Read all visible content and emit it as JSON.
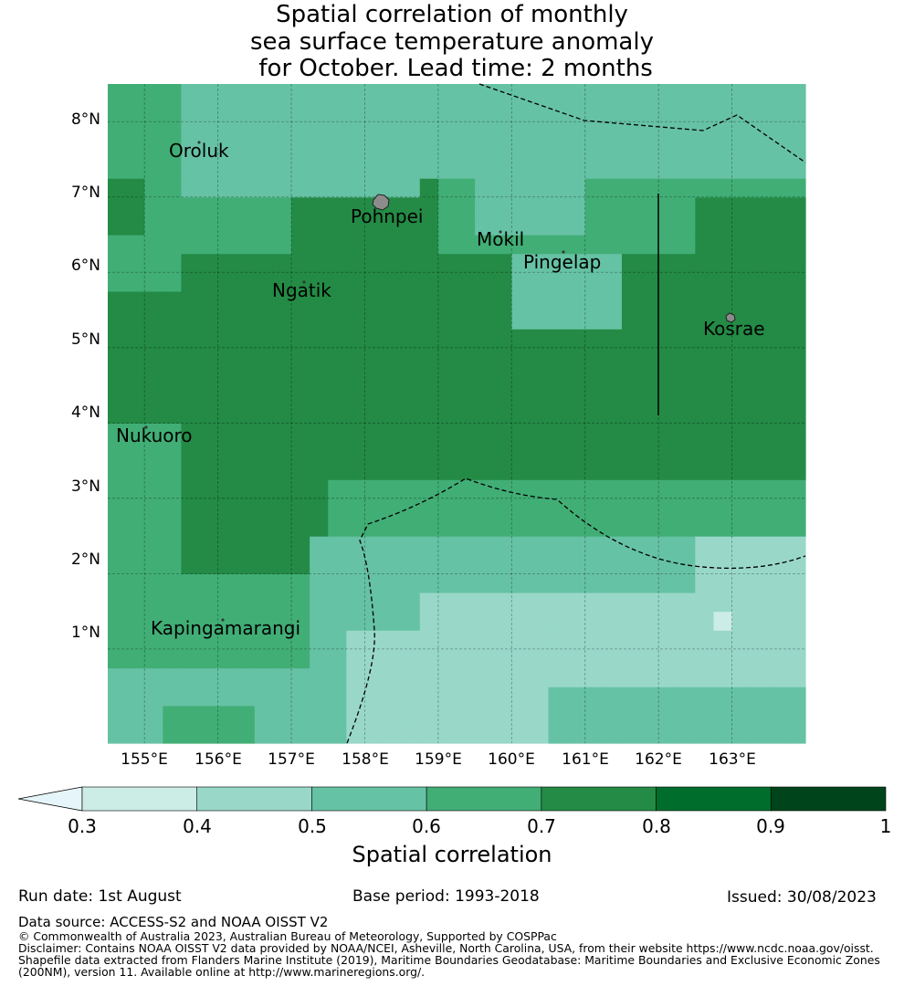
{
  "title_lines": [
    "Spatial correlation of monthly",
    "sea surface temperature anomaly",
    " for October. Lead time: 2 months"
  ],
  "axes": {
    "lat_ticks": [
      "8°N",
      "7°N",
      "6°N",
      "5°N",
      "4°N",
      "3°N",
      "2°N",
      "1°N"
    ],
    "lon_ticks": [
      "155°E",
      "156°E",
      "157°E",
      "158°E",
      "159°E",
      "160°E",
      "161°E",
      "162°E",
      "163°E"
    ],
    "lon_range": [
      154.5,
      164.0
    ],
    "lat_range": [
      -0.25,
      8.5
    ],
    "grid": true
  },
  "places": [
    {
      "name": "Oroluk"
    },
    {
      "name": "Pohnpei"
    },
    {
      "name": "Mokil"
    },
    {
      "name": "Pingelap"
    },
    {
      "name": "Ngatik"
    },
    {
      "name": "Kosrae"
    },
    {
      "name": "Nukuoro"
    },
    {
      "name": "Kapingamarangi"
    }
  ],
  "colorbar": {
    "ticks": [
      "0.3",
      "0.4",
      "0.5",
      "0.6",
      "0.7",
      "0.8",
      "0.9",
      "1"
    ],
    "label": "Spatial correlation",
    "colors": [
      "#ccece6",
      "#99d8c9",
      "#66c2a4",
      "#41ae76",
      "#238b45",
      "#006d2c",
      "#00441b"
    ],
    "extend_color": "#e5f5f9"
  },
  "footer": {
    "run_date": "Run date: 1st August",
    "base_period": "Base period: 1993-2018",
    "issued": "Issued: 30/08/2023",
    "data_source": "Data source: ACCESS-S2 and NOAA OISST V2",
    "copyright": "© Commonwealth of Australia 2023, Australian Bureau of Meteorology, Supported by COSPPac",
    "disclaimer_1": "Disclaimer: Contains NOAA OISST V2 data provided by NOAA/NCEI, Asheville, North Carolina, USA, from their website https://www.ncdc.noaa.gov/oisst.",
    "disclaimer_2": "Shapefile data extracted from Flanders Marine Institute (2019), Maritime Boundaries Geodatabase: Maritime Boundaries and Exclusive Economic Zones",
    "disclaimer_3": "(200NM), version 11. Available online at http://www.marineregions.org/."
  }
}
